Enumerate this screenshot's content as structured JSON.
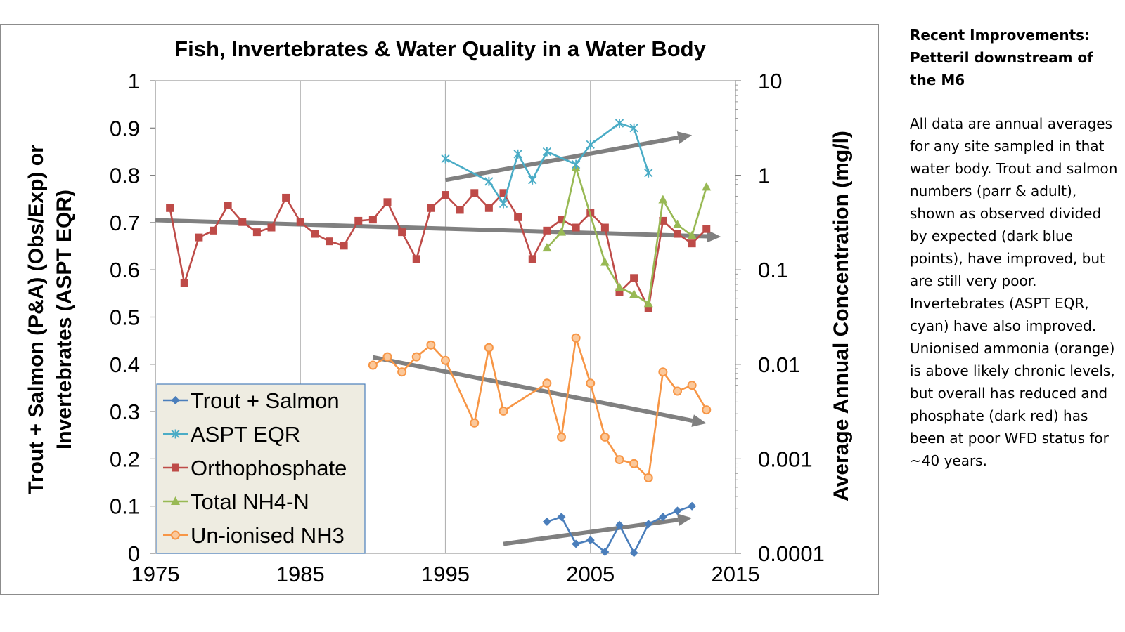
{
  "chart_data": {
    "type": "line",
    "title": "Fish, Invertebrates & Water Quality in a Water Body",
    "ylabel_left_line1": "Trout + Salmon (P&A) (Obs/Exp) or",
    "ylabel_left_line2": "Invertebrates (ASPT EQR)",
    "ylabel_right": "Average Annual Concentration (mg/l)",
    "xlim": [
      1975,
      2015
    ],
    "x_ticks": [
      "1975",
      "1985",
      "1995",
      "2005",
      "2015"
    ],
    "ylim_left": [
      0,
      1
    ],
    "y_ticks_left": [
      "0",
      "0.1",
      "0.2",
      "0.3",
      "0.4",
      "0.5",
      "0.6",
      "0.7",
      "0.8",
      "0.9",
      "1"
    ],
    "ylim_right": [
      0.0001,
      10
    ],
    "y_scale_right": "log",
    "y_ticks_right": [
      "0.0001",
      "0.001",
      "0.01",
      "0.1",
      "1",
      "10"
    ],
    "grid": "vertical",
    "legend_position": "bottom-left",
    "series": [
      {
        "name": "Trout + Salmon",
        "axis": "left",
        "color": "#4a7ebb",
        "marker": "diamond",
        "x": [
          2002,
          2003,
          2004,
          2005,
          2006,
          2007,
          2008,
          2009,
          2010,
          2011,
          2012
        ],
        "y": [
          0.067,
          0.077,
          0.02,
          0.028,
          0.003,
          0.06,
          0.001,
          0.062,
          0.077,
          0.09,
          0.1
        ]
      },
      {
        "name": "ASPT EQR",
        "axis": "left",
        "color": "#4aacc6",
        "marker": "star",
        "x": [
          1995,
          1998,
          1999,
          2000,
          2001,
          2002,
          2004,
          2005,
          2007,
          2008,
          2009
        ],
        "y": [
          0.835,
          0.787,
          0.74,
          0.845,
          0.79,
          0.85,
          0.823,
          0.865,
          0.91,
          0.9,
          0.805
        ]
      },
      {
        "name": "Orthophosphate",
        "axis": "right",
        "color": "#be4b48",
        "marker": "square",
        "x": [
          1976,
          1977,
          1978,
          1979,
          1980,
          1981,
          1982,
          1983,
          1984,
          1985,
          1986,
          1987,
          1988,
          1989,
          1990,
          1991,
          1992,
          1993,
          1994,
          1995,
          1996,
          1997,
          1998,
          1999,
          2000,
          2001,
          2002,
          2003,
          2004,
          2005,
          2006,
          2007,
          2008,
          2009,
          2010,
          2011,
          2012,
          2013
        ],
        "y": [
          0.45,
          0.072,
          0.22,
          0.26,
          0.48,
          0.32,
          0.25,
          0.28,
          0.58,
          0.32,
          0.24,
          0.2,
          0.18,
          0.33,
          0.34,
          0.52,
          0.25,
          0.13,
          0.45,
          0.62,
          0.43,
          0.65,
          0.45,
          0.65,
          0.36,
          0.13,
          0.26,
          0.34,
          0.28,
          0.4,
          0.28,
          0.058,
          0.082,
          0.039,
          0.33,
          0.24,
          0.19,
          0.27
        ]
      },
      {
        "name": "Total NH4-N",
        "axis": "right",
        "color": "#98b954",
        "marker": "triangle",
        "x": [
          2002,
          2003,
          2004,
          2006,
          2007,
          2008,
          2009,
          2010,
          2011,
          2012,
          2013
        ],
        "y": [
          0.17,
          0.25,
          1.2,
          0.12,
          0.065,
          0.055,
          0.044,
          0.55,
          0.3,
          0.23,
          0.75
        ]
      },
      {
        "name": "Un-ionised NH3",
        "axis": "right",
        "color": "#f79646",
        "marker": "circle",
        "x": [
          1990,
          1991,
          1992,
          1993,
          1994,
          1995,
          1997,
          1998,
          1999,
          2002,
          2003,
          2004,
          2005,
          2006,
          2007,
          2008,
          2009,
          2010,
          2011,
          2012,
          2013
        ],
        "y": [
          0.0098,
          0.012,
          0.0083,
          0.012,
          0.016,
          0.011,
          0.0024,
          0.015,
          0.0032,
          0.0063,
          0.0017,
          0.019,
          0.0063,
          0.0017,
          0.00098,
          0.00089,
          0.00063,
          0.0083,
          0.0052,
          0.006,
          0.0033
        ]
      }
    ],
    "trend_arrows": [
      {
        "axis": "left",
        "from": [
          1995,
          0.79
        ],
        "to": [
          2012,
          0.885
        ]
      },
      {
        "axis": "left",
        "from": [
          1975,
          0.705
        ],
        "to": [
          2014,
          0.67
        ]
      },
      {
        "axis": "left",
        "from": [
          1990,
          0.415
        ],
        "to": [
          2013,
          0.275
        ]
      },
      {
        "axis": "left",
        "from": [
          1999,
          0.02
        ],
        "to": [
          2012,
          0.075
        ]
      }
    ]
  },
  "side_panel": {
    "heading": "Recent Improvements: Petteril downstream of the M6",
    "body": "All data are annual averages for any site sampled in that water body. Trout and salmon numbers (parr & adult), shown as observed divided by expected (dark blue points), have improved, but are still very poor. Invertebrates (ASPT EQR, cyan) have also improved. Unionised ammonia (orange) is above likely chronic levels, but overall has reduced and phosphate (dark red) has been at poor WFD status for ~40 years."
  }
}
